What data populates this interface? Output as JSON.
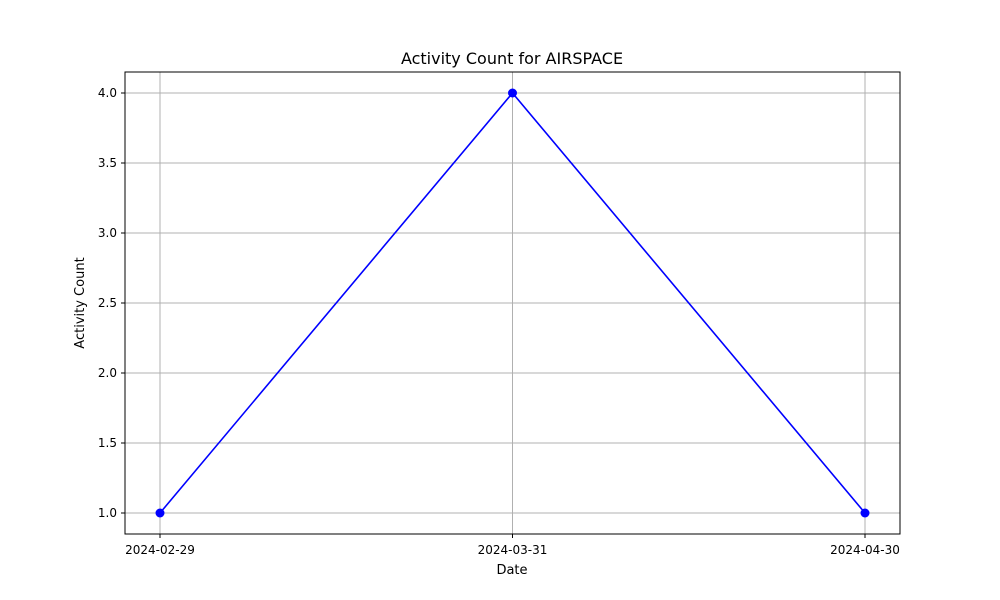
{
  "chart_data": {
    "type": "line",
    "title": "Activity Count for AIRSPACE",
    "xlabel": "Date",
    "ylabel": "Activity Count",
    "x": [
      "2024-02-29",
      "2024-03-31",
      "2024-04-30"
    ],
    "series": [
      {
        "values": [
          1.0,
          4.0,
          1.0
        ],
        "color": "#0000ff",
        "marker": "circle"
      }
    ],
    "x_ticks": [
      "2024-02-29",
      "2024-03-31",
      "2024-04-30"
    ],
    "y_ticks": [
      "1.0",
      "1.5",
      "2.0",
      "2.5",
      "3.0",
      "3.5",
      "4.0"
    ],
    "ylim": [
      0.85,
      4.15
    ],
    "grid": true,
    "legend": false
  }
}
